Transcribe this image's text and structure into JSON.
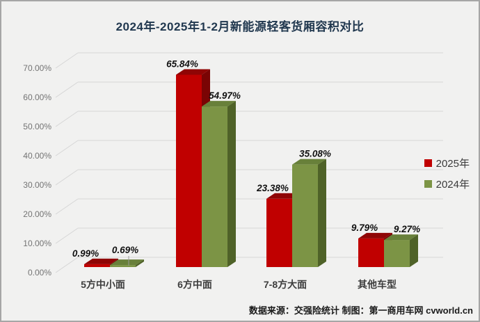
{
  "title": "2024年-2025年1-2月新能源轻客货厢容积对比",
  "footer": {
    "text": "数据来源：交强险统计  制图：第一商用车网 cvworld.cn"
  },
  "legend": {
    "items": [
      {
        "label": "2025年",
        "color": "#c00000"
      },
      {
        "label": "2024年",
        "color": "#7c9445"
      }
    ]
  },
  "chart_data": {
    "type": "bar",
    "style": "3d-clustered-column",
    "title": "2024年-2025年1-2月新能源轻客货厢容积对比",
    "categories": [
      "5方中小面",
      "6方中面",
      "7-8方大面",
      "其他车型"
    ],
    "series": [
      {
        "name": "2025年",
        "color_front": "#c00000",
        "color_top": "#8f0505",
        "color_side": "#7a0404",
        "values": [
          0.99,
          65.84,
          23.38,
          9.79
        ],
        "value_labels": [
          "0.99%",
          "65.84%",
          "23.38%",
          "9.79%"
        ]
      },
      {
        "name": "2024年",
        "color_front": "#7c9445",
        "color_top": "#68803a",
        "color_side": "#4f6228",
        "values": [
          0.69,
          54.97,
          35.08,
          9.27
        ],
        "value_labels": [
          "0.69%",
          "54.97%",
          "35.08%",
          "9.27%"
        ]
      }
    ],
    "xlabel": "",
    "ylabel": "",
    "ylim": [
      0,
      70
    ],
    "y_ticks": [
      "0.00%",
      "10.00%",
      "20.00%",
      "30.00%",
      "40.00%",
      "50.00%",
      "60.00%",
      "70.00%"
    ],
    "grid": true,
    "legend_position": "middle-right",
    "grid_color": "#d6d6d6",
    "tick_color": "#737373",
    "category_color": "#3d3d3d",
    "value_label_color": "#111111"
  }
}
